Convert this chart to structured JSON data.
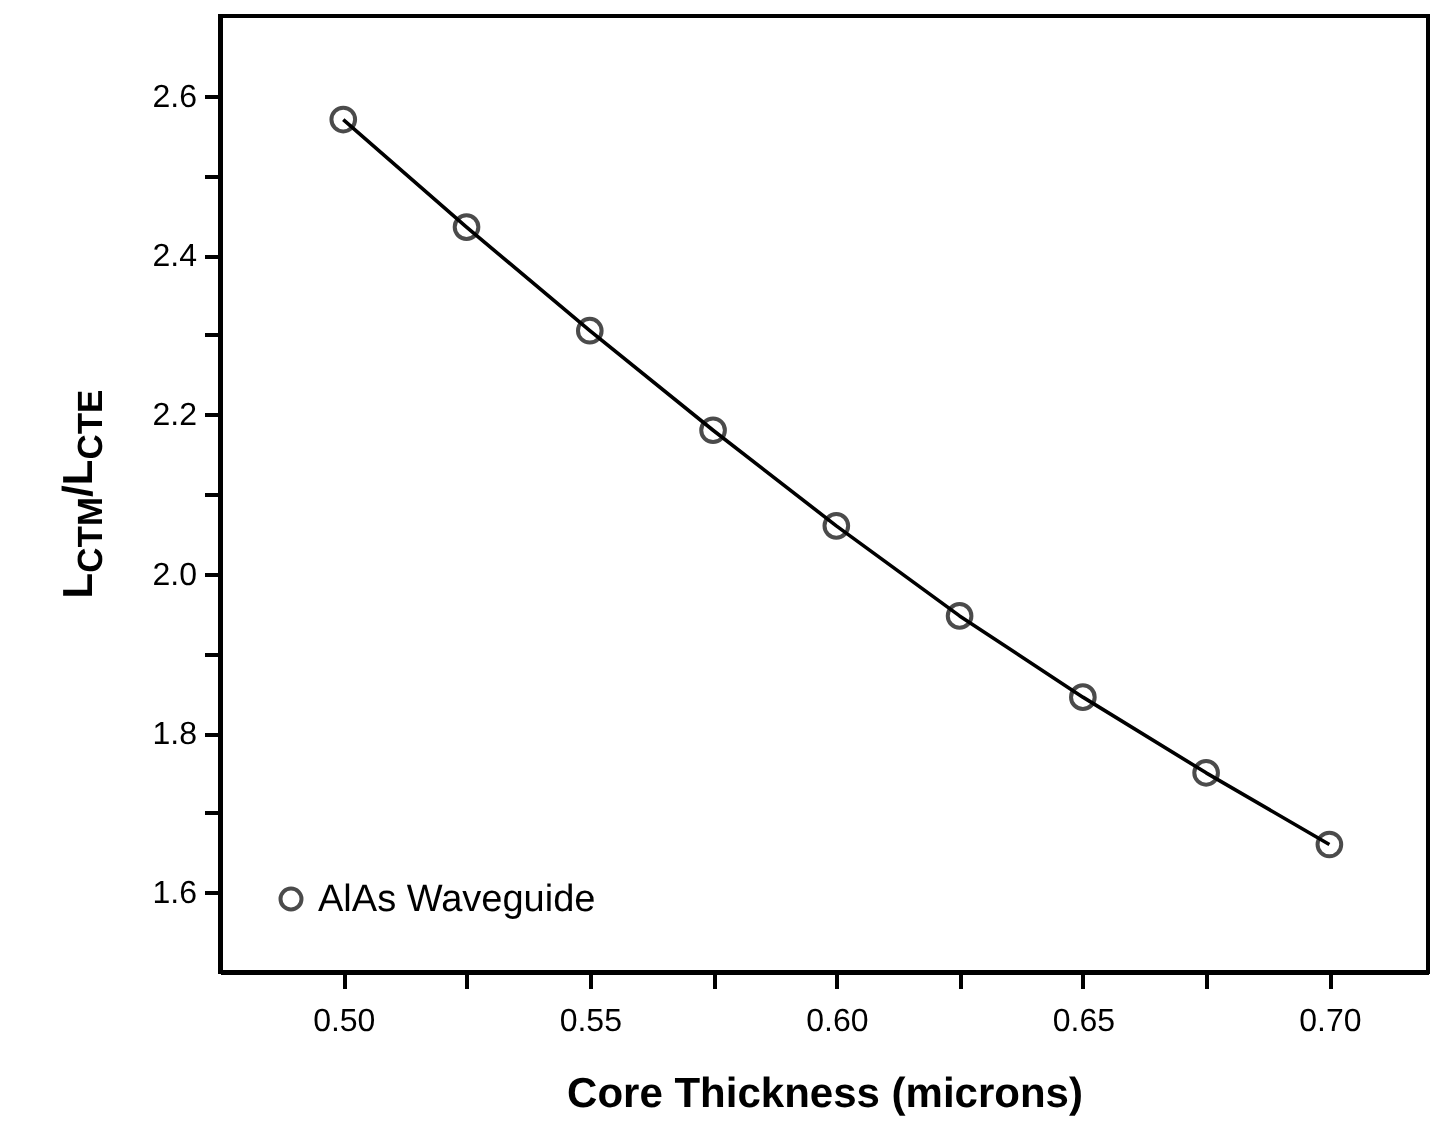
{
  "chart_data": {
    "type": "scatter",
    "xlabel": "Core Thickness (microns)",
    "ylabel": "L$_{CTM}$/L$_{CTE}$",
    "x": [
      0.5,
      0.525,
      0.55,
      0.575,
      0.6,
      0.625,
      0.65,
      0.675,
      0.7
    ],
    "series": [
      {
        "name": "AlAs Waveguide",
        "color": "#000000",
        "marker": "circle",
        "values": [
          2.57,
          2.435,
          2.305,
          2.18,
          2.06,
          1.947,
          1.845,
          1.75,
          1.66
        ]
      },
      {
        "type": "line",
        "color": "#000000",
        "marker": "none",
        "values": [
          2.57,
          2.435,
          2.305,
          2.18,
          2.06,
          1.947,
          1.845,
          1.75,
          1.66
        ]
      }
    ],
    "xlim": [
      0.475,
      0.72
    ],
    "ylim": [
      1.5,
      2.7
    ],
    "xticks": [
      {
        "value": 0.5,
        "label": "0.50"
      },
      {
        "value": 0.525,
        "label": null
      },
      {
        "value": 0.55,
        "label": "0.55"
      },
      {
        "value": 0.575,
        "label": null
      },
      {
        "value": 0.6,
        "label": "0.60"
      },
      {
        "value": 0.625,
        "label": null
      },
      {
        "value": 0.65,
        "label": "0.65"
      },
      {
        "value": 0.675,
        "label": null
      },
      {
        "value": 0.7,
        "label": "0.70"
      }
    ],
    "yticks": [
      1.6,
      {
        "value": 1.7,
        "label": null
      },
      1.8,
      {
        "value": 1.9,
        "label": null
      },
      {
        "value": 2.0,
        "label": "2.0"
      },
      {
        "value": 2.1,
        "label": null
      },
      2.2,
      {
        "value": 2.3,
        "label": null
      },
      2.4,
      {
        "value": 2.5,
        "label": null
      },
      2.6
    ],
    "grid": false,
    "legend": "bottom left"
  }
}
